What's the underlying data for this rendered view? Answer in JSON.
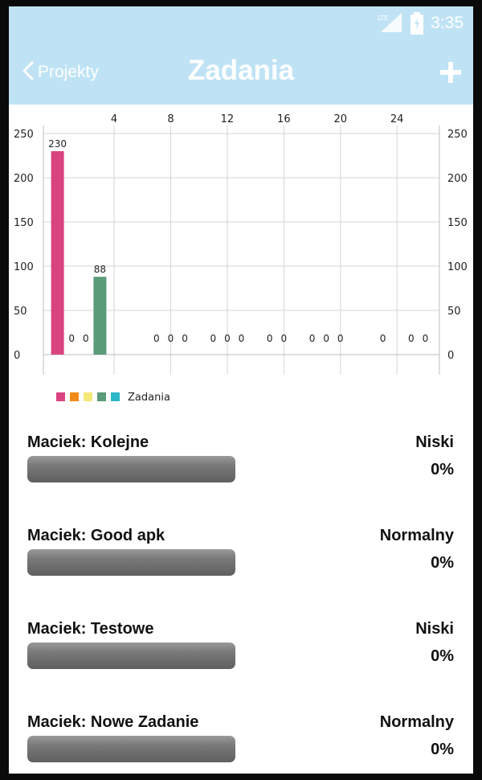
{
  "status_bar": {
    "time": "3:35",
    "network_label": "LTE",
    "network_icon": "signal-icon",
    "battery_icon": "battery-icon"
  },
  "app_bar": {
    "back_label": "Projekty",
    "title": "Zadania",
    "add_icon": "plus-icon",
    "background_color": "#bfe3f5"
  },
  "chart_data": {
    "type": "bar",
    "x_axis_position": "top",
    "x_tick_labels": [
      "4",
      "8",
      "12",
      "16",
      "20",
      "24"
    ],
    "x_ticks": [
      4,
      8,
      12,
      16,
      20,
      24
    ],
    "y_tick_labels": [
      "0",
      "50",
      "100",
      "150",
      "200",
      "250"
    ],
    "y_ticks": [
      0,
      50,
      100,
      150,
      200,
      250
    ],
    "ylim": [
      0,
      250
    ],
    "right_axis": true,
    "grid": true,
    "x": [
      0,
      1,
      2,
      3,
      7,
      8,
      9,
      11,
      12,
      13,
      15,
      16,
      18,
      19,
      20,
      23,
      25,
      26
    ],
    "values": [
      230,
      0,
      0,
      88,
      0,
      0,
      0,
      0,
      0,
      0,
      0,
      0,
      0,
      0,
      0,
      0,
      0,
      0
    ],
    "value_labels": [
      "230",
      "0",
      "0",
      "88",
      "0",
      "0",
      "0",
      "0",
      "0",
      "0",
      "0",
      "0",
      "0",
      "0",
      "0",
      "0",
      "0",
      "0"
    ],
    "colors": [
      "#d9447f",
      "#f18a1a",
      "#f4ea7a",
      "#5a9b79",
      "#2ab8c8"
    ],
    "legend": {
      "label": "Zadania",
      "placement": "bottom-left"
    }
  },
  "tasks": [
    {
      "name": "Maciek: Kolejne",
      "priority": "Niski",
      "percent_label": "0%",
      "progress": 0
    },
    {
      "name": "Maciek: Good apk",
      "priority": "Normalny",
      "percent_label": "0%",
      "progress": 0
    },
    {
      "name": "Maciek: Testowe",
      "priority": "Niski",
      "percent_label": "0%",
      "progress": 0
    },
    {
      "name": "Maciek: Nowe Zadanie",
      "priority": "Normalny",
      "percent_label": "0%",
      "progress": 0
    }
  ]
}
